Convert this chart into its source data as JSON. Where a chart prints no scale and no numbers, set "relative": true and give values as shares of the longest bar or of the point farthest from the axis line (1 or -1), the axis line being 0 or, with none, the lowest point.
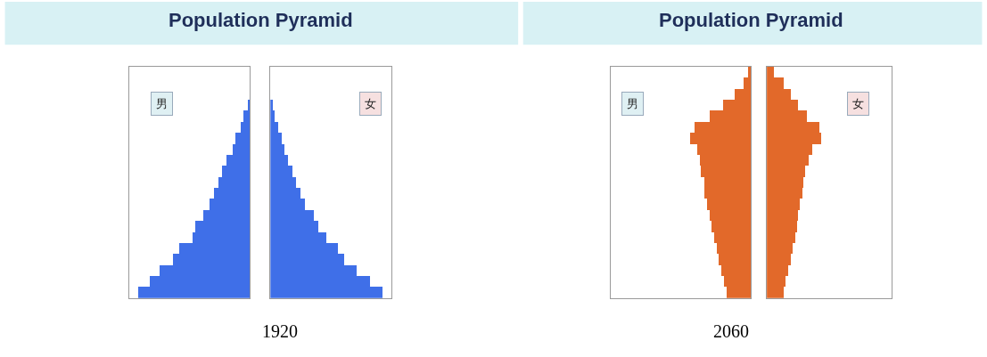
{
  "chart_data": [
    {
      "type": "bar",
      "orientation": "horizontal",
      "relative": true,
      "title": "Population Pyramid",
      "annotations": [
        "男",
        "1920"
      ],
      "color": "#3f6fe8",
      "categories": [
        null,
        null,
        null,
        null,
        null,
        null,
        null,
        null,
        null,
        null,
        null,
        null,
        null,
        null,
        null,
        null,
        null,
        null
      ],
      "values": [
        -0.02,
        -0.06,
        -0.08,
        -0.13,
        -0.15,
        -0.21,
        -0.25,
        -0.28,
        -0.32,
        -0.36,
        -0.42,
        -0.49,
        -0.51,
        -0.63,
        -0.69,
        -0.81,
        -0.9,
        -1
      ]
    },
    {
      "type": "bar",
      "orientation": "horizontal",
      "relative": true,
      "annotations": [
        "女"
      ],
      "color": "#3f6fe8",
      "categories": [
        null,
        null,
        null,
        null,
        null,
        null,
        null,
        null,
        null,
        null,
        null,
        null,
        null,
        null,
        null,
        null,
        null,
        null
      ],
      "values": [
        0.02,
        0.04,
        0.07,
        0.1,
        0.13,
        0.16,
        0.2,
        0.23,
        0.27,
        0.31,
        0.39,
        0.43,
        0.5,
        0.6,
        0.66,
        0.77,
        0.89,
        1
      ]
    },
    {
      "type": "bar",
      "orientation": "horizontal",
      "relative": true,
      "title": "Population Pyramid",
      "annotations": [
        "男",
        "2060"
      ],
      "color": "#e2692a",
      "categories": [
        null,
        null,
        null,
        null,
        null,
        null,
        null,
        null,
        null,
        null,
        null,
        null,
        null,
        null,
        null,
        null,
        null,
        null,
        null,
        null,
        null
      ],
      "values": [
        -0.04,
        -0.12,
        -0.26,
        -0.46,
        -0.68,
        -0.93,
        -1,
        -0.88,
        -0.84,
        -0.82,
        -0.77,
        -0.77,
        -0.72,
        -0.68,
        -0.65,
        -0.6,
        -0.56,
        -0.53,
        -0.49,
        -0.44,
        -0.4
      ]
    },
    {
      "type": "bar",
      "orientation": "horizontal",
      "relative": true,
      "annotations": [
        "女"
      ],
      "color": "#e2692a",
      "categories": [
        null,
        null,
        null,
        null,
        null,
        null,
        null,
        null,
        null,
        null,
        null,
        null,
        null,
        null,
        null,
        null,
        null,
        null,
        null,
        null,
        null
      ],
      "values": [
        0.13,
        0.32,
        0.45,
        0.58,
        0.74,
        0.97,
        1,
        0.84,
        0.77,
        0.71,
        0.68,
        0.66,
        0.61,
        0.58,
        0.56,
        0.52,
        0.48,
        0.45,
        0.4,
        0.35,
        0.32
      ]
    }
  ]
}
